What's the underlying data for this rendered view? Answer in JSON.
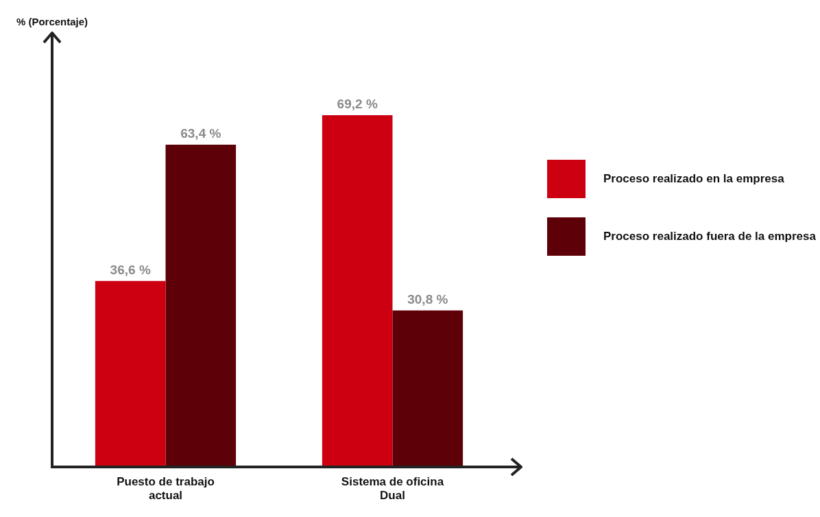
{
  "chart_data": {
    "type": "bar",
    "annotations": [
      "% (Porcentaje)"
    ],
    "categories": [
      "Puesto de trabajo actual",
      "Sistema de oficina Dual"
    ],
    "series": [
      {
        "name": "Proceso realizado en la empresa",
        "color": "#cc0010",
        "values": [
          36.6,
          69.2
        ],
        "value_labels": [
          "36,6 %",
          "69,2 %"
        ]
      },
      {
        "name": "Proceso realizado fuera de la empresa",
        "color": "#5e0008",
        "values": [
          63.4,
          30.8
        ],
        "value_labels": [
          "63,4 %",
          "30,8 %"
        ]
      }
    ],
    "relative": false,
    "grid": false,
    "legend": "right"
  }
}
